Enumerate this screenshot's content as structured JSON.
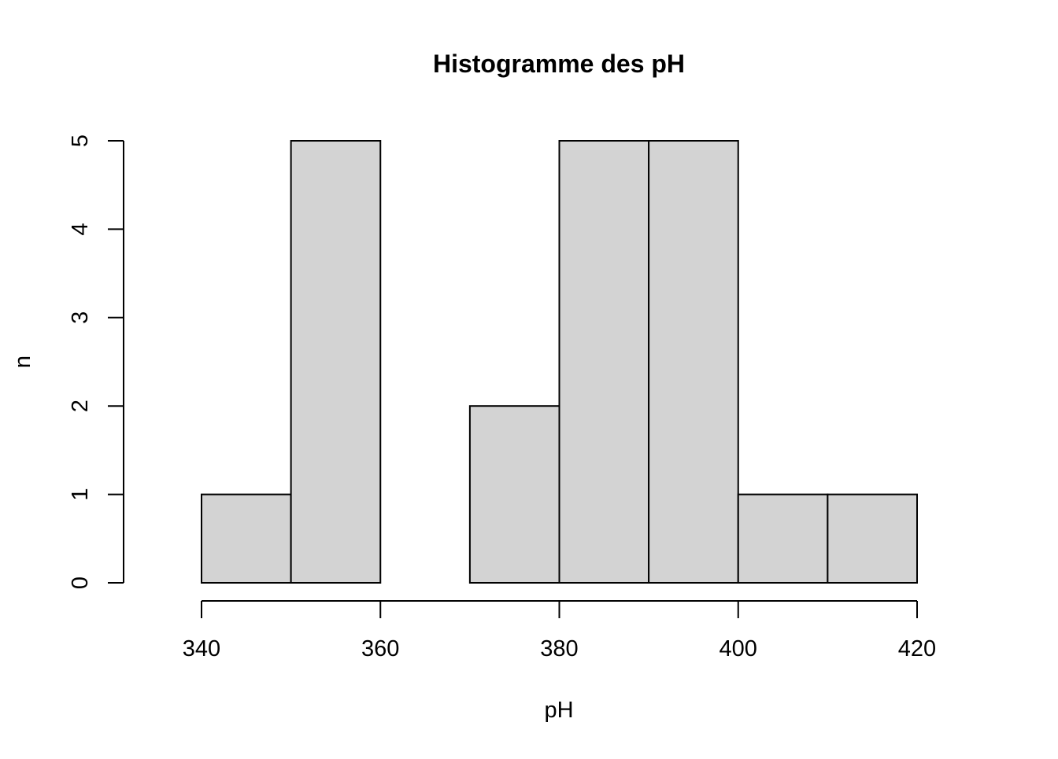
{
  "chart_data": {
    "type": "histogram",
    "title": "Histogramme des pH",
    "xlabel": "pH",
    "ylabel": "n",
    "bin_edges": [
      340,
      350,
      360,
      370,
      380,
      390,
      400,
      410,
      420
    ],
    "counts": [
      1,
      5,
      0,
      2,
      5,
      5,
      1,
      1
    ],
    "xlim": [
      340,
      420
    ],
    "ylim": [
      0,
      5
    ],
    "x_ticks": [
      340,
      360,
      380,
      400,
      420
    ],
    "y_ticks": [
      0,
      1,
      2,
      3,
      4,
      5
    ],
    "bar_fill": "#d3d3d3",
    "bar_stroke": "#000000",
    "grid": false
  }
}
